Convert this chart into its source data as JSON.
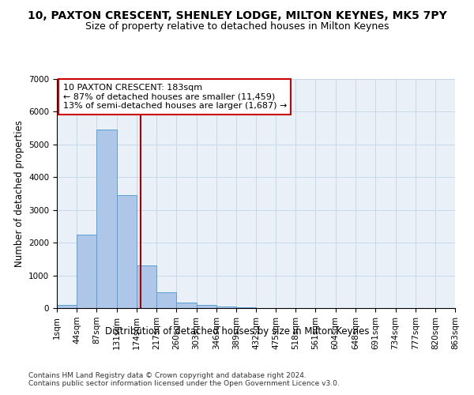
{
  "title": "10, PAXTON CRESCENT, SHENLEY LODGE, MILTON KEYNES, MK5 7PY",
  "subtitle": "Size of property relative to detached houses in Milton Keynes",
  "xlabel": "Distribution of detached houses by size in Milton Keynes",
  "ylabel": "Number of detached properties",
  "bar_values": [
    100,
    2250,
    5450,
    3450,
    1300,
    480,
    180,
    100,
    50,
    20,
    10,
    5,
    3,
    2,
    1,
    1,
    0,
    0,
    0,
    0
  ],
  "bin_edges": [
    1,
    44,
    87,
    131,
    174,
    217,
    260,
    303,
    346,
    389,
    432,
    475,
    518,
    561,
    604,
    648,
    691,
    734,
    777,
    820,
    863
  ],
  "x_tick_labels": [
    "1sqm",
    "44sqm",
    "87sqm",
    "131sqm",
    "174sqm",
    "217sqm",
    "260sqm",
    "303sqm",
    "346sqm",
    "389sqm",
    "432sqm",
    "475sqm",
    "518sqm",
    "561sqm",
    "604sqm",
    "648sqm",
    "691sqm",
    "734sqm",
    "777sqm",
    "820sqm",
    "863sqm"
  ],
  "bar_color": "#aec6e8",
  "bar_edge_color": "#5a9fd4",
  "vline_x": 183,
  "vline_color": "#aa0000",
  "annotation_text": "10 PAXTON CRESCENT: 183sqm\n← 87% of detached houses are smaller (11,459)\n13% of semi-detached houses are larger (1,687) →",
  "annotation_box_color": "#ffffff",
  "annotation_box_edge": "#cc0000",
  "ylim": [
    0,
    7000
  ],
  "grid_color": "#c8d8e8",
  "background_color": "#eaf0f8",
  "footer_text": "Contains HM Land Registry data © Crown copyright and database right 2024.\nContains public sector information licensed under the Open Government Licence v3.0.",
  "title_fontsize": 10,
  "subtitle_fontsize": 9,
  "axis_label_fontsize": 8.5,
  "tick_fontsize": 7.5,
  "annotation_fontsize": 8,
  "footer_fontsize": 6.5
}
